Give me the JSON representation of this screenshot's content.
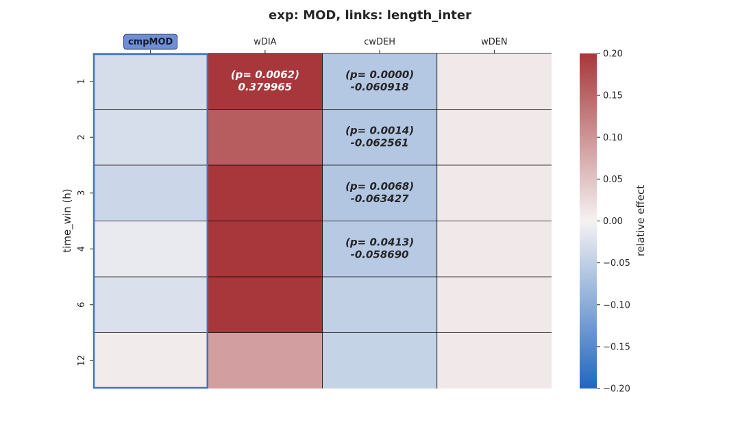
{
  "chart_data": {
    "type": "heatmap",
    "title": "exp: MOD, links: length_inter",
    "xlabel": "",
    "ylabel": "time_win (h)",
    "colorbar_label": "relative effect",
    "columns": [
      "cmpMOD",
      "wDIA",
      "cwDEH",
      "wDEN"
    ],
    "highlighted_column": "cmpMOD",
    "rows": [
      "1",
      "2",
      "3",
      "4",
      "6",
      "12"
    ],
    "values": [
      [
        -0.03,
        0.379965,
        -0.060918,
        0.01
      ],
      [
        -0.028,
        0.16,
        -0.062561,
        0.01
      ],
      [
        -0.04,
        0.3,
        -0.063427,
        0.01
      ],
      [
        -0.012,
        0.25,
        -0.05869,
        0.01
      ],
      [
        -0.025,
        0.28,
        -0.048,
        0.01
      ],
      [
        0.008,
        0.09,
        -0.045,
        0.01
      ]
    ],
    "annotations": [
      {
        "row": "1",
        "column": "wDIA",
        "p": "(p= 0.0062)",
        "value": "0.379965"
      },
      {
        "row": "1",
        "column": "cwDEH",
        "p": "(p= 0.0000)",
        "value": "-0.060918"
      },
      {
        "row": "2",
        "column": "cwDEH",
        "p": "(p= 0.0014)",
        "value": "-0.062561"
      },
      {
        "row": "3",
        "column": "cwDEH",
        "p": "(p= 0.0068)",
        "value": "-0.063427"
      },
      {
        "row": "4",
        "column": "cwDEH",
        "p": "(p= 0.0413)",
        "value": "-0.058690"
      }
    ],
    "colorbar": {
      "min": -0.2,
      "max": 0.2,
      "ticks": [
        "0.20",
        "0.15",
        "0.10",
        "0.05",
        "0.00",
        "−0.05",
        "−0.10",
        "−0.15",
        "−0.20"
      ],
      "tick_values": [
        0.2,
        0.15,
        0.1,
        0.05,
        0.0,
        -0.05,
        -0.1,
        -0.15,
        -0.2
      ]
    },
    "colormap": {
      "low": "#2166c0",
      "mid": "#f5f2f2",
      "high": "#a7373a"
    },
    "highlight_color": "#4472c4",
    "badge_fill": "#6d8fd4"
  }
}
